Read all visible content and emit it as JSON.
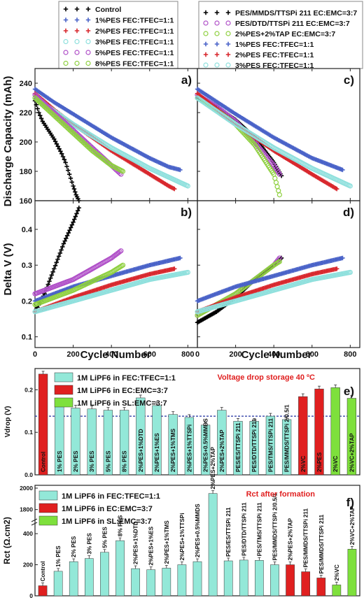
{
  "chart_data": [
    {
      "panel": "a)",
      "type": "scatter",
      "xlabel": "",
      "ylabel": "Discharge Capacity (mAh)",
      "xlim": [
        0,
        850
      ],
      "ylim": [
        160,
        250
      ],
      "yticks": [
        160,
        180,
        200,
        220,
        240
      ],
      "series": [
        {
          "name": "Control",
          "color": "#000000",
          "marker": "+",
          "points": [
            [
              0,
              228
            ],
            [
              20,
              220
            ],
            [
              40,
              214
            ],
            [
              60,
              210
            ],
            [
              80,
              206
            ],
            [
              100,
              202
            ],
            [
              120,
              197
            ],
            [
              140,
              192
            ],
            [
              160,
              186
            ],
            [
              180,
              178
            ],
            [
              200,
              170
            ],
            [
              215,
              164
            ],
            [
              230,
              160
            ]
          ]
        },
        {
          "name": "1%PES FEC:TFEC=1:1",
          "color": "#4a63c8",
          "marker": "+",
          "points": [
            [
              0,
              236
            ],
            [
              100,
              227
            ],
            [
              200,
              219
            ],
            [
              300,
              211
            ],
            [
              400,
              203
            ],
            [
              500,
              196
            ],
            [
              600,
              189
            ],
            [
              700,
              183
            ],
            [
              760,
              181
            ]
          ]
        },
        {
          "name": "2%PES FEC:TFEC=1:1",
          "color": "#d8282e",
          "marker": "+",
          "points": [
            [
              0,
              233
            ],
            [
              100,
              222
            ],
            [
              200,
              212
            ],
            [
              300,
              203
            ],
            [
              400,
              194
            ],
            [
              500,
              186
            ],
            [
              600,
              178
            ],
            [
              700,
              170
            ],
            [
              730,
              168
            ]
          ]
        },
        {
          "name": "3%PES FEC:TFEC=1:1",
          "color": "#8fe0dd",
          "marker": "o",
          "points": [
            [
              0,
              230
            ],
            [
              100,
              221
            ],
            [
              200,
              212
            ],
            [
              300,
              204
            ],
            [
              400,
              196
            ],
            [
              500,
              189
            ],
            [
              600,
              182
            ],
            [
              700,
              176
            ],
            [
              800,
              170
            ]
          ]
        },
        {
          "name": "5%PES FEC:TFEC=1:1",
          "color": "#b050c8",
          "marker": "o",
          "points": [
            [
              0,
              232
            ],
            [
              100,
              220
            ],
            [
              200,
              208
            ],
            [
              300,
              196
            ],
            [
              400,
              184
            ],
            [
              450,
              178
            ]
          ]
        },
        {
          "name": "8%PES FEC:TFEC=1:1",
          "color": "#8fd040",
          "marker": "o",
          "points": [
            [
              0,
              230
            ],
            [
              100,
              218
            ],
            [
              200,
              206
            ],
            [
              300,
              194
            ],
            [
              400,
              184
            ],
            [
              460,
              180
            ]
          ]
        }
      ]
    },
    {
      "panel": "b)",
      "type": "scatter",
      "xlabel": "Cycle Number",
      "ylabel": "Delta V (V)",
      "xlim": [
        0,
        850
      ],
      "ylim": [
        0.07,
        0.48
      ],
      "xticks": [
        0,
        200,
        400,
        600,
        800
      ],
      "yticks": [
        0.1,
        0.2,
        0.3,
        0.4
      ],
      "series": [
        {
          "name": "Control",
          "points": [
            [
              0,
              0.17
            ],
            [
              50,
              0.22
            ],
            [
              100,
              0.29
            ],
            [
              150,
              0.36
            ],
            [
              200,
              0.42
            ],
            [
              230,
              0.46
            ]
          ]
        },
        {
          "name": "1%PES FEC:TFEC=1:1",
          "points": [
            [
              0,
              0.2
            ],
            [
              200,
              0.24
            ],
            [
              400,
              0.27
            ],
            [
              600,
              0.3
            ],
            [
              760,
              0.32
            ]
          ]
        },
        {
          "name": "2%PES FEC:TFEC=1:1",
          "points": [
            [
              0,
              0.17
            ],
            [
              200,
              0.21
            ],
            [
              400,
              0.245
            ],
            [
              600,
              0.275
            ],
            [
              730,
              0.29
            ]
          ]
        },
        {
          "name": "3%PES FEC:TFEC=1:1",
          "points": [
            [
              0,
              0.17
            ],
            [
              200,
              0.2
            ],
            [
              400,
              0.23
            ],
            [
              600,
              0.26
            ],
            [
              800,
              0.28
            ]
          ]
        },
        {
          "name": "5%PES FEC:TFEC=1:1",
          "points": [
            [
              0,
              0.22
            ],
            [
              200,
              0.26
            ],
            [
              400,
              0.32
            ],
            [
              450,
              0.34
            ]
          ]
        },
        {
          "name": "8%PES FEC:TFEC=1:1",
          "points": [
            [
              0,
              0.19
            ],
            [
              200,
              0.23
            ],
            [
              400,
              0.28
            ],
            [
              460,
              0.3
            ]
          ]
        }
      ]
    },
    {
      "panel": "c)",
      "type": "scatter",
      "xlabel": "",
      "ylabel": "",
      "xlim": [
        0,
        850
      ],
      "ylim": [
        160,
        250
      ],
      "series": [
        {
          "name": "PES/MMDS/TTSPi 211 EC:EMC=3:7",
          "color": "#000000",
          "marker": "+",
          "points": [
            [
              0,
              230
            ],
            [
              100,
              224
            ],
            [
              200,
              215
            ],
            [
              300,
              203
            ],
            [
              400,
              186
            ],
            [
              440,
              177
            ]
          ]
        },
        {
          "name": "PES/DTD/TTSPi 211 EC:EMC=3:7",
          "color": "#b050c8",
          "marker": "o",
          "points": [
            [
              0,
              232
            ],
            [
              100,
              224
            ],
            [
              200,
              214
            ],
            [
              300,
              200
            ],
            [
              400,
              184
            ],
            [
              430,
              178
            ]
          ]
        },
        {
          "name": "2%PES+2%TAP EC:EMC=3:7",
          "color": "#8fd040",
          "marker": "o",
          "points": [
            [
              0,
              230
            ],
            [
              100,
              222
            ],
            [
              200,
              212
            ],
            [
              300,
              198
            ],
            [
              400,
              178
            ],
            [
              430,
              164
            ]
          ]
        },
        {
          "name": "1%PES FEC:TFEC=1:1",
          "color": "#4a63c8",
          "marker": "+",
          "points": [
            [
              0,
              236
            ],
            [
              200,
              219
            ],
            [
              400,
              203
            ],
            [
              600,
              189
            ],
            [
              760,
              181
            ]
          ]
        },
        {
          "name": "2%PES FEC:TFEC=1:1",
          "color": "#d8282e",
          "marker": "+",
          "points": [
            [
              0,
              233
            ],
            [
              200,
              212
            ],
            [
              400,
              194
            ],
            [
              600,
              178
            ],
            [
              730,
              168
            ]
          ]
        },
        {
          "name": "3%PES FEC:TFEC=1:1",
          "color": "#8fe0dd",
          "marker": "o",
          "points": [
            [
              0,
              230
            ],
            [
              200,
              212
            ],
            [
              400,
              196
            ],
            [
              600,
              182
            ],
            [
              800,
              170
            ]
          ]
        }
      ]
    },
    {
      "panel": "d)",
      "type": "scatter",
      "xlabel": "Cycle Number",
      "ylabel": "",
      "xlim": [
        0,
        850
      ],
      "ylim": [
        0.07,
        0.48
      ],
      "xticks": [
        0,
        200,
        400,
        600,
        800
      ],
      "series": [
        {
          "name": "PES/MMDS/TTSPi 211 EC:EMC=3:7",
          "points": [
            [
              0,
              0.14
            ],
            [
              100,
              0.17
            ],
            [
              200,
              0.21
            ],
            [
              300,
              0.26
            ],
            [
              400,
              0.3
            ],
            [
              440,
              0.32
            ]
          ]
        },
        {
          "name": "PES/DTD/TTSPi 211 EC:EMC=3:7",
          "points": [
            [
              0,
              0.16
            ],
            [
              100,
              0.19
            ],
            [
              200,
              0.22
            ],
            [
              300,
              0.26
            ],
            [
              400,
              0.3
            ],
            [
              430,
              0.32
            ]
          ]
        },
        {
          "name": "2%PES+2%TAP EC:EMC=3:7",
          "points": [
            [
              0,
              0.16
            ],
            [
              100,
              0.19
            ],
            [
              200,
              0.22
            ],
            [
              300,
              0.26
            ],
            [
              400,
              0.3
            ],
            [
              430,
              0.31
            ]
          ]
        },
        {
          "name": "1%PES FEC:TFEC=1:1",
          "points": [
            [
              0,
              0.2
            ],
            [
              200,
              0.24
            ],
            [
              400,
              0.27
            ],
            [
              600,
              0.3
            ],
            [
              760,
              0.32
            ]
          ]
        },
        {
          "name": "2%PES FEC:TFEC=1:1",
          "points": [
            [
              0,
              0.17
            ],
            [
              200,
              0.21
            ],
            [
              400,
              0.245
            ],
            [
              600,
              0.275
            ],
            [
              730,
              0.29
            ]
          ]
        },
        {
          "name": "3%PES FEC:TFEC=1:1",
          "points": [
            [
              0,
              0.17
            ],
            [
              200,
              0.2
            ],
            [
              400,
              0.23
            ],
            [
              600,
              0.26
            ],
            [
              800,
              0.28
            ]
          ]
        }
      ]
    },
    {
      "panel": "e)",
      "type": "bar",
      "title": "Voltage drop storage 40 ºC",
      "ylabel": "Vdrop (V)",
      "ylim": [
        0,
        0.25
      ],
      "yticks": [
        0.0,
        0.1,
        0.2
      ],
      "reference_line": 0.138,
      "legend": [
        {
          "label": "1M LiPF6 in FEC:TFEC=1:1",
          "color": "#93e8d8"
        },
        {
          "label": "1M LiPF6 in EC:EMC=3:7",
          "color": "#e02020"
        },
        {
          "label": "1M LiPF6 in SL:EMC=3:7",
          "color": "#7ee03c"
        }
      ],
      "categories": [
        "Control",
        "1% PES",
        "2% PES",
        "3% PES",
        "5% PES",
        "8% PES",
        "2%PES+1%DTD",
        "2%PES+1%ES",
        "2%PES+1%TMS",
        "2%PES+1%TTSPi",
        "2%PES+0.5%MMDS",
        "2%PES+2%TAP",
        "PES/ES/TTSPi 211",
        "PES/DTD/TTSPi 211",
        "PES/TMS/TTSPi 211",
        "PES/MMDS/TTSPi 2/0.5/1",
        "2%VC",
        "2%PES",
        "2%VC",
        "2%VC+2%TAP"
      ],
      "group": [
        1,
        0,
        0,
        0,
        0,
        0,
        0,
        0,
        0,
        0,
        0,
        0,
        0,
        0,
        0,
        0,
        1,
        1,
        2,
        2
      ],
      "values": [
        0.237,
        0.171,
        0.157,
        0.155,
        0.152,
        0.152,
        0.181,
        0.163,
        0.142,
        0.135,
        0.117,
        0.152,
        0.126,
        0.126,
        0.138,
        0.13,
        0.184,
        0.202,
        0.205,
        0.18
      ]
    },
    {
      "panel": "f)",
      "type": "bar",
      "title": "Rct after formation",
      "ylabel": "Rct (Ω.cm2)",
      "yticks_lower": [
        0,
        200,
        400
      ],
      "yticks_upper": [
        1800,
        2000
      ],
      "legend": [
        {
          "label": "1M LiPF6 in FEC:TFEC=1:1",
          "color": "#93e8d8"
        },
        {
          "label": "1M LiPF6 in EC:EMC=3:7",
          "color": "#e02020"
        },
        {
          "label": "1M LiPF6 in SL:EMC=3:7",
          "color": "#7ee03c"
        }
      ],
      "categories": [
        "Control",
        "1% PES",
        "2% PES",
        "3% PES",
        "5% PES",
        "8% PES",
        "2%PES+1%DTD",
        "2%PES+1%ES",
        "2%PES+1%TMS",
        "2%PES+1%TTSPi",
        "2%PES+0.5%MMDS",
        "2%PES+2%TAP",
        "PES/ES/TTSPi 211",
        "PES/DTD/TTSPi 211",
        "PES/TMS/TTSPi 211",
        "PES/MMDS/TTSPi 2/0.5/1",
        "2%PES+2%TAP",
        "PES/MMDS/TTSPi 211",
        "PES/MMDS/TTSPi 211",
        "2%VC",
        "2%VC+2%TAP"
      ],
      "group": [
        1,
        0,
        0,
        0,
        0,
        0,
        0,
        0,
        0,
        0,
        0,
        0,
        0,
        0,
        0,
        0,
        1,
        1,
        1,
        2,
        2
      ],
      "values": [
        65,
        158,
        220,
        240,
        280,
        355,
        175,
        168,
        178,
        200,
        220,
        1950,
        225,
        230,
        228,
        200,
        200,
        155,
        115,
        70,
        300
      ]
    }
  ]
}
